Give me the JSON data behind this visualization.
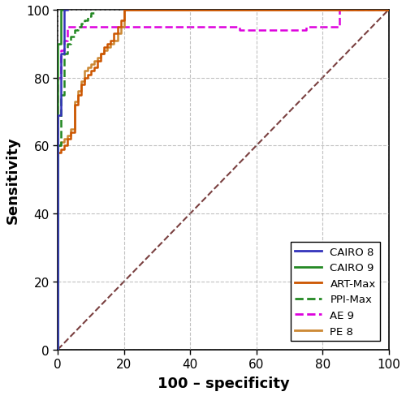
{
  "title": "",
  "xlabel": "100 – specificity",
  "ylabel": "Sensitivity",
  "xlim": [
    0,
    100
  ],
  "ylim": [
    0,
    100
  ],
  "xticks": [
    0,
    20,
    40,
    60,
    80,
    100
  ],
  "yticks": [
    0,
    20,
    40,
    60,
    80,
    100
  ],
  "background_color": "#ffffff",
  "grid_color": "#999999",
  "curves": {
    "diagonal": {
      "color": "#7a4040",
      "linestyle": "dashed",
      "linewidth": 1.5,
      "x": [
        0,
        100
      ],
      "y": [
        0,
        100
      ]
    },
    "AE9": {
      "color": "#dd00dd",
      "linestyle": "dashed",
      "linewidth": 1.8,
      "x": [
        0,
        0,
        1,
        1,
        2,
        2,
        3,
        3,
        55,
        55,
        75,
        75,
        85,
        85,
        100,
        100
      ],
      "y": [
        0,
        80,
        80,
        88,
        88,
        91,
        91,
        95,
        95,
        94,
        94,
        95,
        95,
        100,
        100,
        100
      ]
    },
    "PE8": {
      "color": "#cc8833",
      "linestyle": "solid",
      "linewidth": 1.8,
      "x": [
        0,
        0,
        1,
        1,
        2,
        2,
        3,
        3,
        4,
        4,
        5,
        5,
        6,
        6,
        7,
        7,
        8,
        8,
        9,
        9,
        10,
        10,
        11,
        11,
        12,
        12,
        13,
        13,
        14,
        14,
        15,
        15,
        16,
        16,
        17,
        17,
        18,
        18,
        19,
        19,
        20,
        20,
        100
      ],
      "y": [
        0,
        60,
        60,
        61,
        61,
        62,
        62,
        63,
        63,
        65,
        65,
        73,
        73,
        76,
        76,
        79,
        79,
        82,
        82,
        83,
        83,
        84,
        84,
        85,
        85,
        86,
        86,
        87,
        87,
        88,
        88,
        89,
        89,
        90,
        90,
        91,
        91,
        93,
        93,
        95,
        95,
        100,
        100
      ]
    },
    "ARTMax": {
      "color": "#cc5500",
      "linestyle": "solid",
      "linewidth": 1.8,
      "x": [
        0,
        0,
        1,
        1,
        2,
        2,
        3,
        3,
        4,
        4,
        5,
        5,
        6,
        6,
        7,
        7,
        8,
        8,
        9,
        9,
        10,
        10,
        11,
        11,
        12,
        12,
        13,
        13,
        14,
        14,
        15,
        15,
        16,
        16,
        17,
        17,
        18,
        18,
        19,
        19,
        20,
        20,
        100
      ],
      "y": [
        0,
        58,
        58,
        59,
        59,
        60,
        60,
        62,
        62,
        64,
        64,
        72,
        72,
        75,
        75,
        78,
        78,
        80,
        80,
        81,
        81,
        82,
        82,
        83,
        83,
        85,
        85,
        87,
        87,
        89,
        89,
        90,
        90,
        91,
        91,
        93,
        93,
        95,
        95,
        97,
        97,
        100,
        100
      ]
    },
    "PPIMax": {
      "color": "#228822",
      "linestyle": "dashed",
      "linewidth": 1.8,
      "x": [
        0,
        0,
        1,
        1,
        2,
        2,
        3,
        3,
        4,
        4,
        5,
        5,
        6,
        6,
        7,
        7,
        8,
        8,
        9,
        9,
        10,
        10,
        11,
        11
      ],
      "y": [
        0,
        60,
        60,
        75,
        75,
        87,
        87,
        90,
        90,
        92,
        92,
        94,
        94,
        95,
        95,
        96,
        96,
        97,
        97,
        98,
        98,
        99,
        99,
        100
      ]
    },
    "CAIRO9": {
      "color": "#228822",
      "linestyle": "solid",
      "linewidth": 1.8,
      "x": [
        0,
        0,
        1,
        1,
        2,
        2
      ],
      "y": [
        0,
        90,
        90,
        100,
        100,
        100
      ]
    },
    "CAIRO8": {
      "color": "#3333bb",
      "linestyle": "solid",
      "linewidth": 1.8,
      "x": [
        0,
        0,
        1,
        1,
        2,
        2,
        3,
        3
      ],
      "y": [
        0,
        69,
        69,
        87,
        87,
        100,
        100,
        100
      ]
    }
  },
  "legend_order": [
    "CAIRO 8",
    "CAIRO 9",
    "ART-Max",
    "PPI-Max",
    "AE 9",
    "PE 8"
  ],
  "legend": {
    "CAIRO 8": {
      "color": "#3333bb",
      "linestyle": "solid"
    },
    "CAIRO 9": {
      "color": "#228822",
      "linestyle": "solid"
    },
    "ART-Max": {
      "color": "#cc5500",
      "linestyle": "solid"
    },
    "PPI-Max": {
      "color": "#228822",
      "linestyle": "dashed"
    },
    "AE 9": {
      "color": "#dd00dd",
      "linestyle": "dashed"
    },
    "PE 8": {
      "color": "#cc8833",
      "linestyle": "solid"
    }
  }
}
